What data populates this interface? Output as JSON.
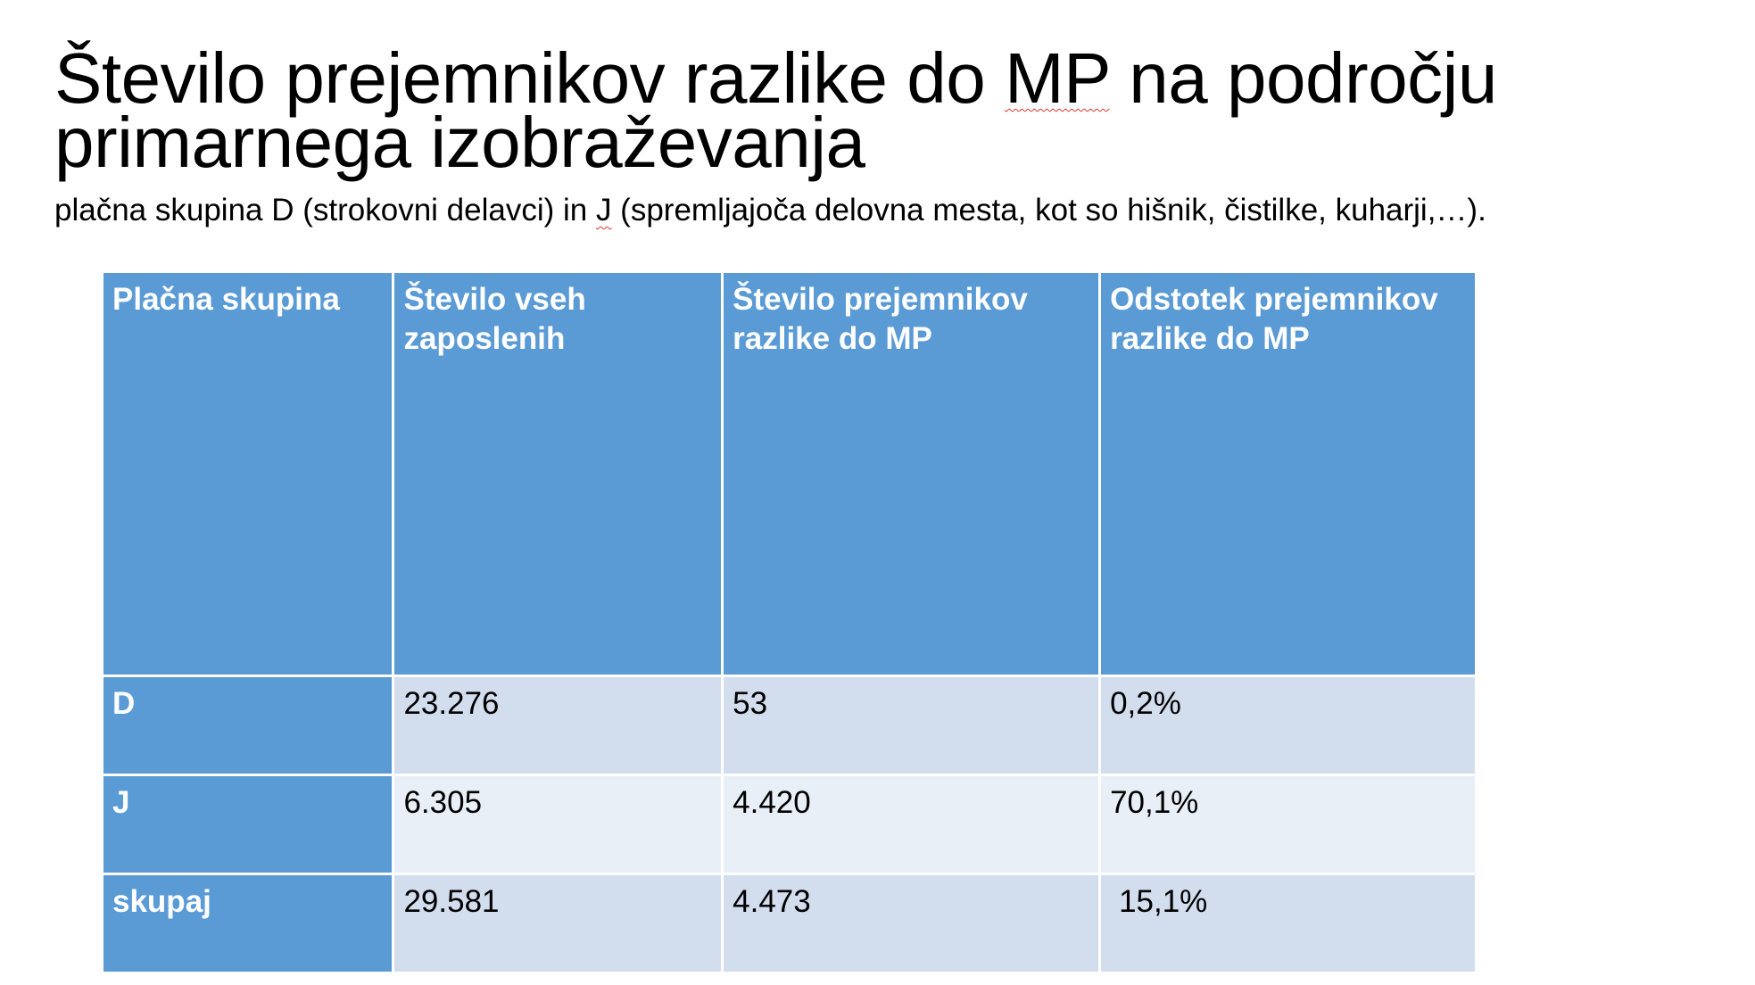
{
  "title": {
    "line1_before": "Število prejemnikov razlike do ",
    "line1_marked": "MP",
    "line1_after": " na področju",
    "line2": "primarnega izobraževanja"
  },
  "subtitle": {
    "before": "plačna skupina D (strokovni delavci) in ",
    "marked": "J",
    "after": " (spremljajoča delovna mesta, kot so hišnik, čistilke, kuharji,…)."
  },
  "table": {
    "headers": [
      "Plačna skupina",
      "Število vseh zaposlenih",
      "Število prejemnikov razlike do MP",
      "Odstotek prejemnikov razlike do MP"
    ],
    "rows": [
      {
        "group": "D",
        "employees": "23.276",
        "recipients": "53",
        "percent": "0,2%"
      },
      {
        "group": "J",
        "employees": "6.305",
        "recipients": "4.420",
        "percent": "70,1%"
      },
      {
        "group": "skupaj",
        "employees": "29.581",
        "recipients": "4.473",
        "percent": "15,1%"
      }
    ]
  },
  "colors": {
    "header_blue": "#5b9bd5",
    "row_light_1": "#d2dded",
    "row_light_2": "#e9eff7",
    "spellcheck_red": "#e03030"
  }
}
